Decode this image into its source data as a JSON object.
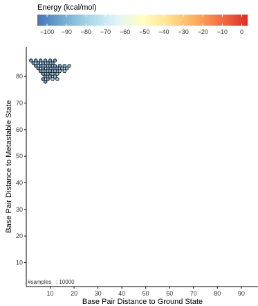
{
  "chart_data": {
    "type": "scatter",
    "title": "",
    "xlabel": "Base Pair Distance to Ground State",
    "ylabel": "Base Pair Distance to Metastable State",
    "xlim": [
      0,
      97
    ],
    "ylim": [
      1,
      91
    ],
    "x_ticks": [
      10,
      20,
      30,
      40,
      50,
      60,
      70,
      80,
      90
    ],
    "y_ticks": [
      10,
      20,
      30,
      40,
      50,
      60,
      70,
      80
    ],
    "grid": false,
    "legend": {
      "title": "Energy (kcal/mol)",
      "placement": "top",
      "range": [
        -105,
        3
      ],
      "ticks": [
        -100,
        -90,
        -80,
        -70,
        -60,
        -50,
        -40,
        -30,
        -20,
        -10,
        0
      ],
      "tick_labels": [
        "−100",
        "−90",
        "−80",
        "−70",
        "−60",
        "−50",
        "−40",
        "−30",
        "−20",
        "−10",
        "0"
      ],
      "color_stops": [
        "#4575b4",
        "#74add1",
        "#abd9e9",
        "#e0f3f8",
        "#ffffbf",
        "#fee090",
        "#fdae61",
        "#f46d43",
        "#d73027"
      ]
    },
    "annotation": "#samples   : 10000",
    "points": [
      {
        "x": 2,
        "y": 86,
        "e": -96
      },
      {
        "x": 3,
        "y": 85,
        "e": -97
      },
      {
        "x": 4,
        "y": 86,
        "e": -96
      },
      {
        "x": 5,
        "y": 85,
        "e": -97
      },
      {
        "x": 6,
        "y": 86,
        "e": -95
      },
      {
        "x": 7,
        "y": 85,
        "e": -96
      },
      {
        "x": 8,
        "y": 86,
        "e": -95
      },
      {
        "x": 9,
        "y": 85,
        "e": -96
      },
      {
        "x": 10,
        "y": 86,
        "e": -94
      },
      {
        "x": 11,
        "y": 85,
        "e": -95
      },
      {
        "x": 12,
        "y": 86,
        "e": -94
      },
      {
        "x": 4,
        "y": 84,
        "e": -97
      },
      {
        "x": 5,
        "y": 83,
        "e": -98
      },
      {
        "x": 6,
        "y": 84,
        "e": -97
      },
      {
        "x": 7,
        "y": 83,
        "e": -98
      },
      {
        "x": 8,
        "y": 84,
        "e": -96
      },
      {
        "x": 9,
        "y": 83,
        "e": -97
      },
      {
        "x": 10,
        "y": 84,
        "e": -96
      },
      {
        "x": 11,
        "y": 83,
        "e": -96
      },
      {
        "x": 12,
        "y": 84,
        "e": -95
      },
      {
        "x": 13,
        "y": 83,
        "e": -95
      },
      {
        "x": 14,
        "y": 84,
        "e": -94
      },
      {
        "x": 6,
        "y": 82,
        "e": -98
      },
      {
        "x": 7,
        "y": 81,
        "e": -98
      },
      {
        "x": 8,
        "y": 82,
        "e": -97
      },
      {
        "x": 9,
        "y": 81,
        "e": -97
      },
      {
        "x": 10,
        "y": 82,
        "e": -96
      },
      {
        "x": 11,
        "y": 81,
        "e": -88
      },
      {
        "x": 12,
        "y": 82,
        "e": -90
      },
      {
        "x": 13,
        "y": 81,
        "e": -85
      },
      {
        "x": 14,
        "y": 82,
        "e": -86
      },
      {
        "x": 15,
        "y": 83,
        "e": -88
      },
      {
        "x": 16,
        "y": 84,
        "e": -90
      },
      {
        "x": 17,
        "y": 83,
        "e": -86
      },
      {
        "x": 18,
        "y": 84,
        "e": -84
      },
      {
        "x": 7,
        "y": 79,
        "e": -98
      },
      {
        "x": 8,
        "y": 80,
        "e": -98
      },
      {
        "x": 9,
        "y": 79,
        "e": -97
      },
      {
        "x": 10,
        "y": 80,
        "e": -92
      },
      {
        "x": 12,
        "y": 80,
        "e": -84
      },
      {
        "x": 13,
        "y": 79,
        "e": -82
      },
      {
        "x": 8,
        "y": 78,
        "e": -97
      },
      {
        "x": 11,
        "y": 79,
        "e": -80
      },
      {
        "x": 16,
        "y": 82,
        "e": -82
      }
    ]
  }
}
